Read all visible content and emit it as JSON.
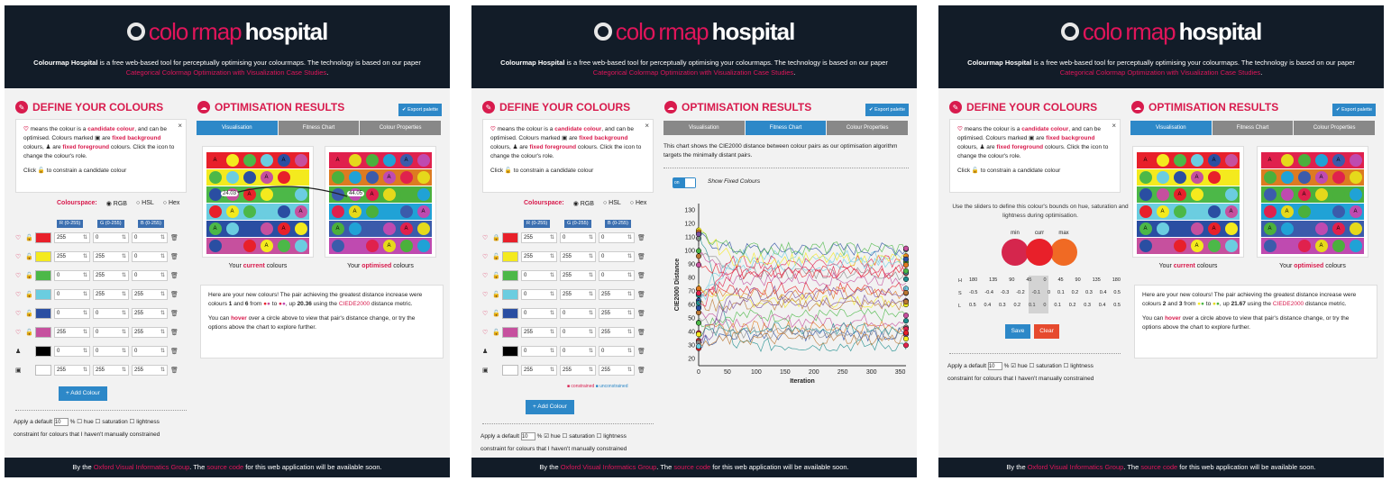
{
  "header": {
    "logo_part1": "colo",
    "logo_part2": "rmap",
    "logo_part3": "hospital",
    "tagline_bold": "Colourmap Hospital",
    "tagline_text": " is a free web-based tool for perceptually optimising your colourmaps. The technology is based on our paper ",
    "paper_link": "Categorical Colormap Optimization with Visualization Case Studies",
    "tagline_end": "."
  },
  "footer": {
    "prefix": "By the ",
    "group_link": "Oxford Visual Informatics Group",
    "middle": ". The ",
    "source_link": "source code",
    "suffix": " for this web application will be available soon."
  },
  "define": {
    "title": "DEFINE YOUR COLOURS",
    "info_p1a": " means the colour is a ",
    "info_candidate": "candidate colour",
    "info_p1b": ", and can be optimised. Colours marked ",
    "info_p1c": " are ",
    "info_fixed_bg": "fixed background",
    "info_p1d": " colours, ",
    "info_p1e": " are ",
    "info_fixed_fg": "fixed foreground",
    "info_p1f": " colours. Click the icon to change the colour's role.",
    "info_hint": "Click 🔓 to constrain a candidate colour",
    "close": "×",
    "colourspace_label": "Colourspace:",
    "radio_rgb": "RGB",
    "radio_hsl": "HSL",
    "radio_hex": "Hex",
    "ch_r": "R (0-255)",
    "ch_g": "G (0-255)",
    "ch_b": "B (0-255)",
    "add_colour": "+ Add Colour",
    "apply_a": "Apply a default",
    "apply_val": "10",
    "apply_pct": "%",
    "apply_hue": "hue",
    "apply_sat": "saturation",
    "apply_light": "lightness",
    "apply_b": "constraint for colours that I haven't manually constrained"
  },
  "colours": [
    {
      "hex": "#e8202a",
      "r": "255",
      "g": "0",
      "b": "0"
    },
    {
      "hex": "#f4ea1e",
      "r": "255",
      "g": "255",
      "b": "0"
    },
    {
      "hex": "#4cb848",
      "r": "0",
      "g": "255",
      "b": "0"
    },
    {
      "hex": "#6bcde0",
      "r": "0",
      "g": "255",
      "b": "255"
    },
    {
      "hex": "#2a4ea2",
      "r": "0",
      "g": "0",
      "b": "255"
    },
    {
      "hex": "#c6509e",
      "r": "255",
      "g": "0",
      "b": "255"
    },
    {
      "hex": "#000000",
      "r": "0",
      "g": "0",
      "b": "0"
    },
    {
      "hex": "#ffffff",
      "r": "255",
      "g": "255",
      "b": "255"
    }
  ],
  "results": {
    "title": "OPTIMISATION RESULTS",
    "export": "✔ Export palette",
    "tabs": [
      "Visualisation",
      "Fitness Chart",
      "Colour Properties"
    ],
    "current_caption_a": "Your ",
    "current_caption_b": "current",
    "current_caption_c": " colours",
    "optimised_caption_b": "optimised",
    "label_a": "A",
    "dist_left": "24.03",
    "dist_right": "44.05",
    "msg1_a": "Here are your new colours! The pair achieving the greatest distance increase were colours ",
    "msg1_n1": "1",
    "msg1_mid": " and ",
    "msg1_n2": "6",
    "msg1_b": " from ",
    "msg1_c": " to ",
    "msg1_d": ", up ",
    "msg1_val": "20.36",
    "msg1_e": " using the ",
    "msg1_metric": "CIEDE2000",
    "msg1_f": " distance metric.",
    "msg2_a": "You can ",
    "msg2_hover": "hover",
    "msg2_b": " over a circle above to view that pair's distance change, or try the options above the chart to explore further.",
    "p3_msg1_n1": "2",
    "p3_msg1_n2": "3",
    "p3_msg1_val": "21.67"
  },
  "fitness": {
    "desc": "This chart shows the CIE2000 distance between colour pairs as our optimisation algorithm targets the minimally distant pairs.",
    "toggle": "on",
    "toggle_label": "Show Fixed Colours",
    "legend_a": "■ constrained",
    "legend_b": "■ unconstrained"
  },
  "chart_data": {
    "type": "line",
    "title": "",
    "xlabel": "Iteration",
    "ylabel": "CIE2000 Distance",
    "xlim": [
      0,
      360
    ],
    "ylim": [
      15,
      135
    ],
    "x_ticks": [
      "0",
      "50",
      "100",
      "150",
      "200",
      "250",
      "300",
      "350"
    ],
    "y_ticks": [
      "20",
      "30",
      "40",
      "50",
      "60",
      "70",
      "80",
      "90",
      "100",
      "110",
      "120",
      "130"
    ]
  },
  "constraint": {
    "instructions": "Use the sliders to define this colour's bounds on hue, saturation and lightness during optimisation.",
    "min": "min",
    "curr": "curr",
    "max": "max",
    "h_label": "H",
    "s_label": "S",
    "l_label": "L",
    "h_ticks": [
      "180",
      "135",
      "90",
      "45",
      "0",
      "45",
      "90",
      "135",
      "180"
    ],
    "s_ticks": [
      "-0.5",
      "-0.4",
      "-0.3",
      "-0.2",
      "-0.1",
      "0",
      "0.1",
      "0.2",
      "0.3",
      "0.4",
      "0.5"
    ],
    "l_ticks": [
      "0.5",
      "0.4",
      "0.3",
      "0.2",
      "0.1",
      "0",
      "0.1",
      "0.2",
      "0.3",
      "0.4",
      "0.5"
    ],
    "save": "Save",
    "clear": "Clear"
  },
  "colors": {
    "accent": "#d81b4d",
    "header_bg": "#121c28",
    "button_blue": "#2d88c8"
  }
}
